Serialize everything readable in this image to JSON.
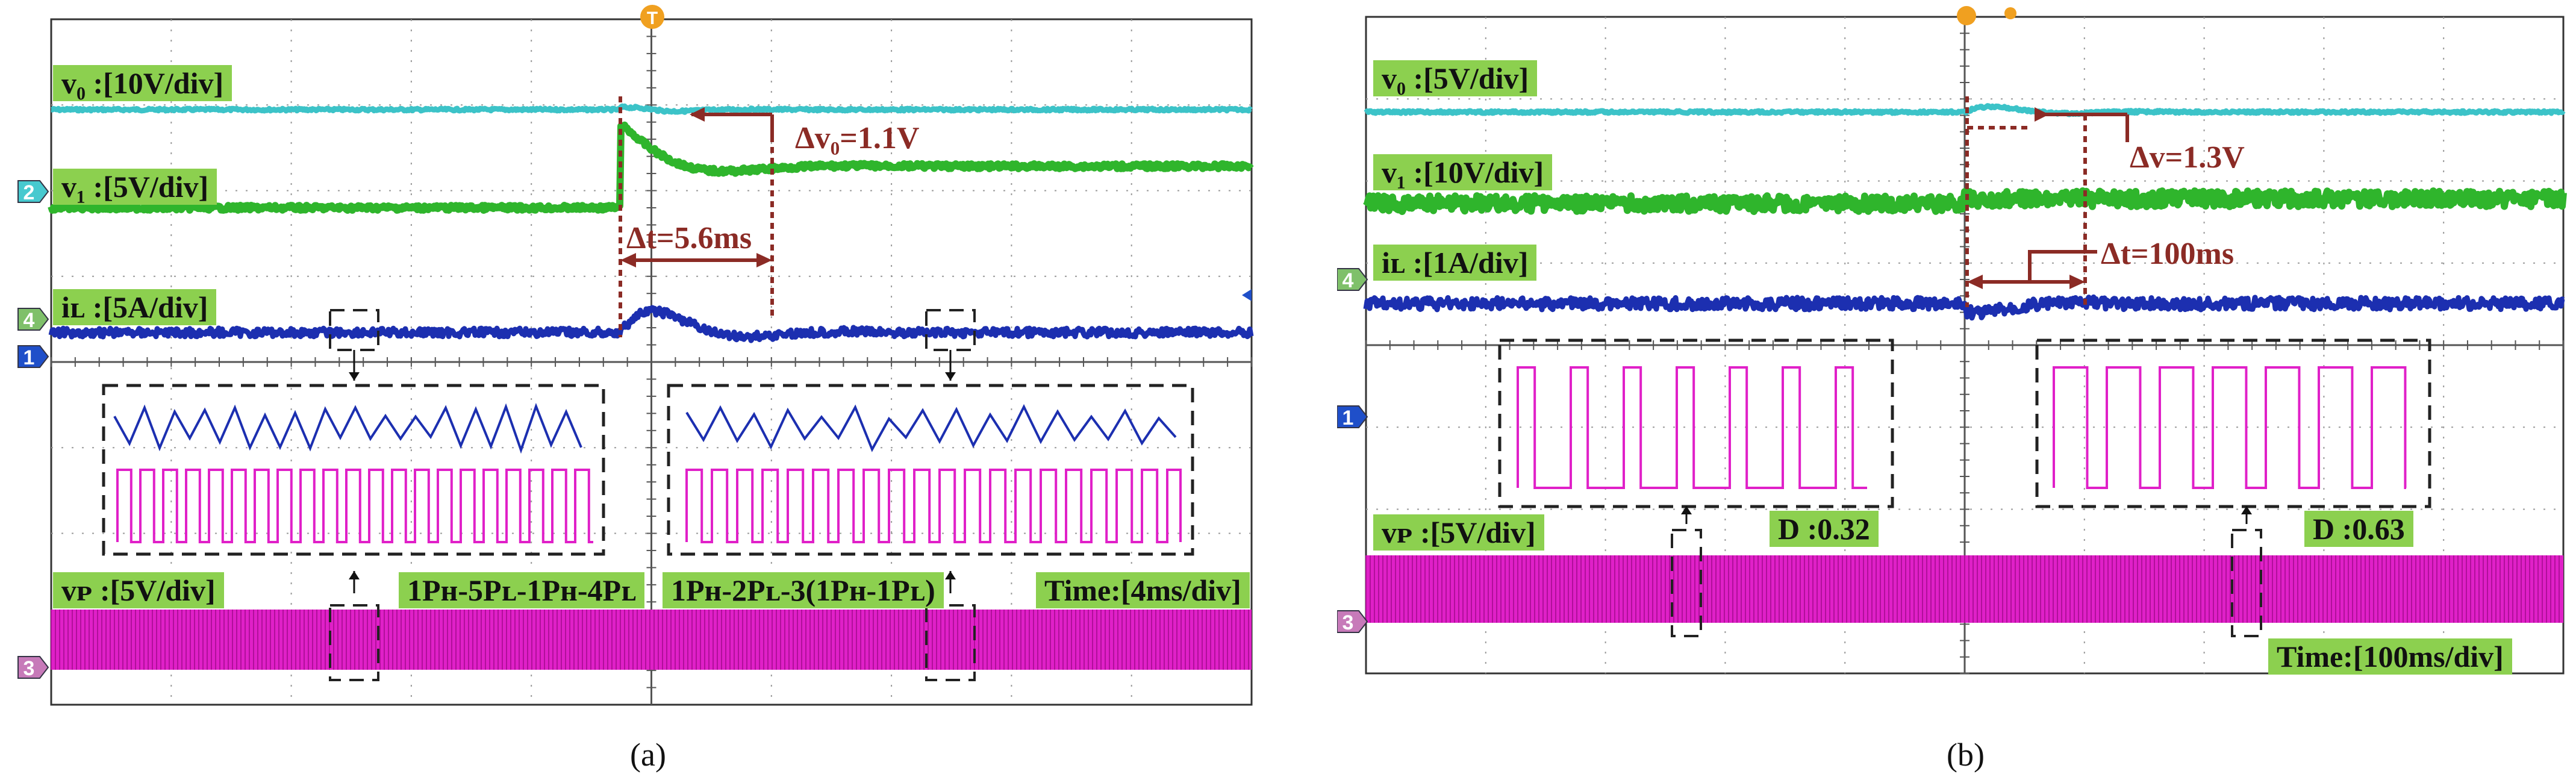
{
  "chart_data": [
    {
      "type": "line",
      "caption": "(a)",
      "grid": true,
      "channel_markers": [
        "2",
        "4",
        "1",
        "3"
      ],
      "trigger_marker": "T",
      "labels": {
        "vo": "v₀ :[10V/div]",
        "v1": "v₁ :[5V/div]",
        "iL": "iʟ :[5A/div]",
        "vP": "vᴘ :[5V/div]",
        "mode1": "1Pʜ-5Pʟ-1Pʜ-4Pʟ",
        "mode2": "1Pʜ-2Pʟ-3(1Pʜ-1Pʟ)",
        "time": "Time:[4ms/div]"
      },
      "annotations": {
        "dv": "Δv₀=1.1V",
        "dt": "Δt=5.6ms"
      },
      "series_colors": {
        "vo": "#3cc3c8",
        "v1": "#2fb52c",
        "iL": "#1c2fb0",
        "vP": "#e020c8"
      }
    },
    {
      "type": "line",
      "caption": "(b)",
      "grid": true,
      "channel_markers": [
        "4",
        "1",
        "3"
      ],
      "labels": {
        "vo": "v₀ :[5V/div]",
        "v1": "v₁ :[10V/div]",
        "iL": "iʟ :[1A/div]",
        "vP": "vᴘ :[5V/div]",
        "d1": "D :0.32",
        "d2": "D :0.63",
        "time": "Time:[100ms/div]"
      },
      "annotations": {
        "dv": "Δv=1.3V",
        "dt": "Δt=100ms"
      },
      "series_colors": {
        "vo": "#3cc3c8",
        "v1": "#2fb52c",
        "iL": "#1c2fb0",
        "vP": "#e020c8"
      }
    }
  ]
}
